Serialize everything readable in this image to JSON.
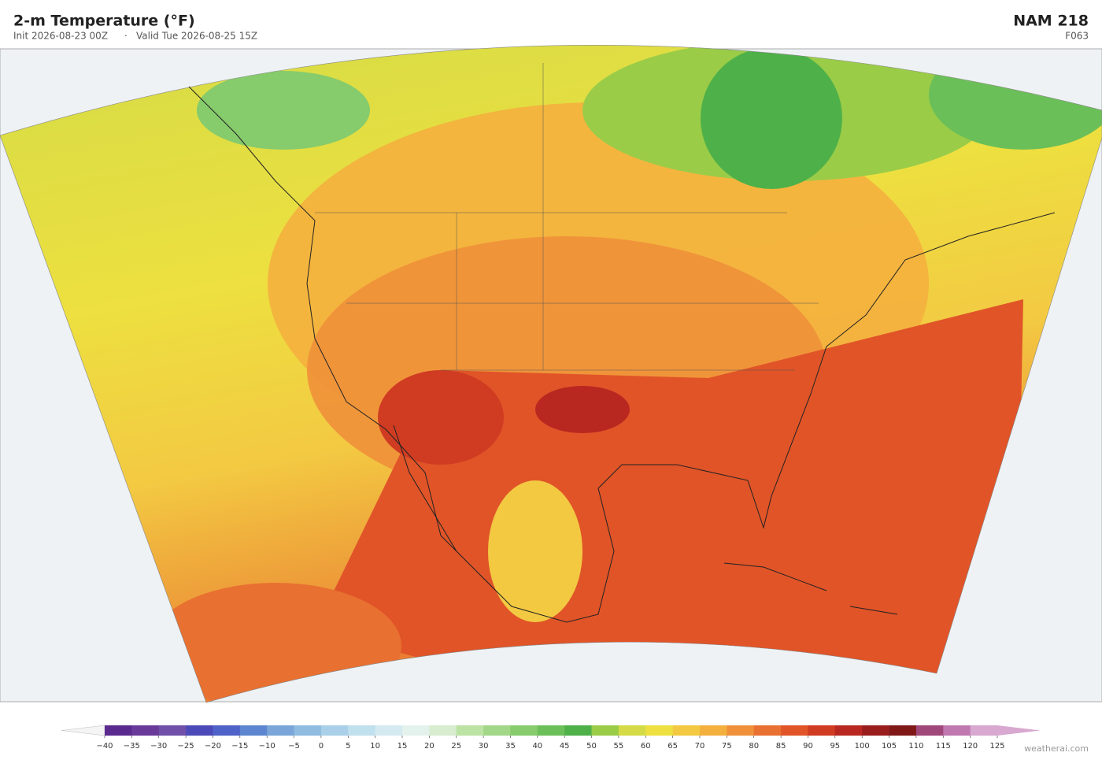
{
  "header": {
    "title": "2-m Temperature  (°F)",
    "init": "Init 2026-08-23 00Z",
    "separator": "·",
    "valid": "Valid Tue 2026-08-25 15Z",
    "model": "NAM  218",
    "forecast_hour": "F063"
  },
  "colorbar": {
    "ticks": [
      {
        "value": -40,
        "label": "−40"
      },
      {
        "value": -35,
        "label": "−35"
      },
      {
        "value": -30,
        "label": "−30"
      },
      {
        "value": -25,
        "label": "−25"
      },
      {
        "value": -20,
        "label": "−20"
      },
      {
        "value": -15,
        "label": "−15"
      },
      {
        "value": -10,
        "label": "−10"
      },
      {
        "value": -5,
        "label": "−5"
      },
      0,
      5,
      10,
      15,
      20,
      25,
      30,
      35,
      40,
      45,
      50,
      55,
      60,
      65,
      70,
      75,
      80,
      85,
      90,
      95,
      100,
      105,
      110,
      115,
      120,
      125
    ],
    "colors": [
      "#5b2a8f",
      "#6a3a9a",
      "#7050a8",
      "#4b4ab8",
      "#4f62c8",
      "#5c86d0",
      "#7aa5d8",
      "#8fbce0",
      "#a9d0e8",
      "#c1e0ee",
      "#d4eaf0",
      "#e4f2ee",
      "#d8ecd0",
      "#bde3a4",
      "#a2d788",
      "#86cb6c",
      "#6bbf58",
      "#4eb048",
      "#9acc48",
      "#d4db46",
      "#ede040",
      "#f3c942",
      "#f4b03e",
      "#f0903a",
      "#e87030",
      "#e05428",
      "#cf3c22",
      "#b82820",
      "#9a1d1e",
      "#801818",
      "#a0487a",
      "#c078b0",
      "#d8a8d0"
    ],
    "under_color": "#f4f4f4",
    "over_color": "#d8a8d0"
  },
  "watermark": "weatherai.com"
}
